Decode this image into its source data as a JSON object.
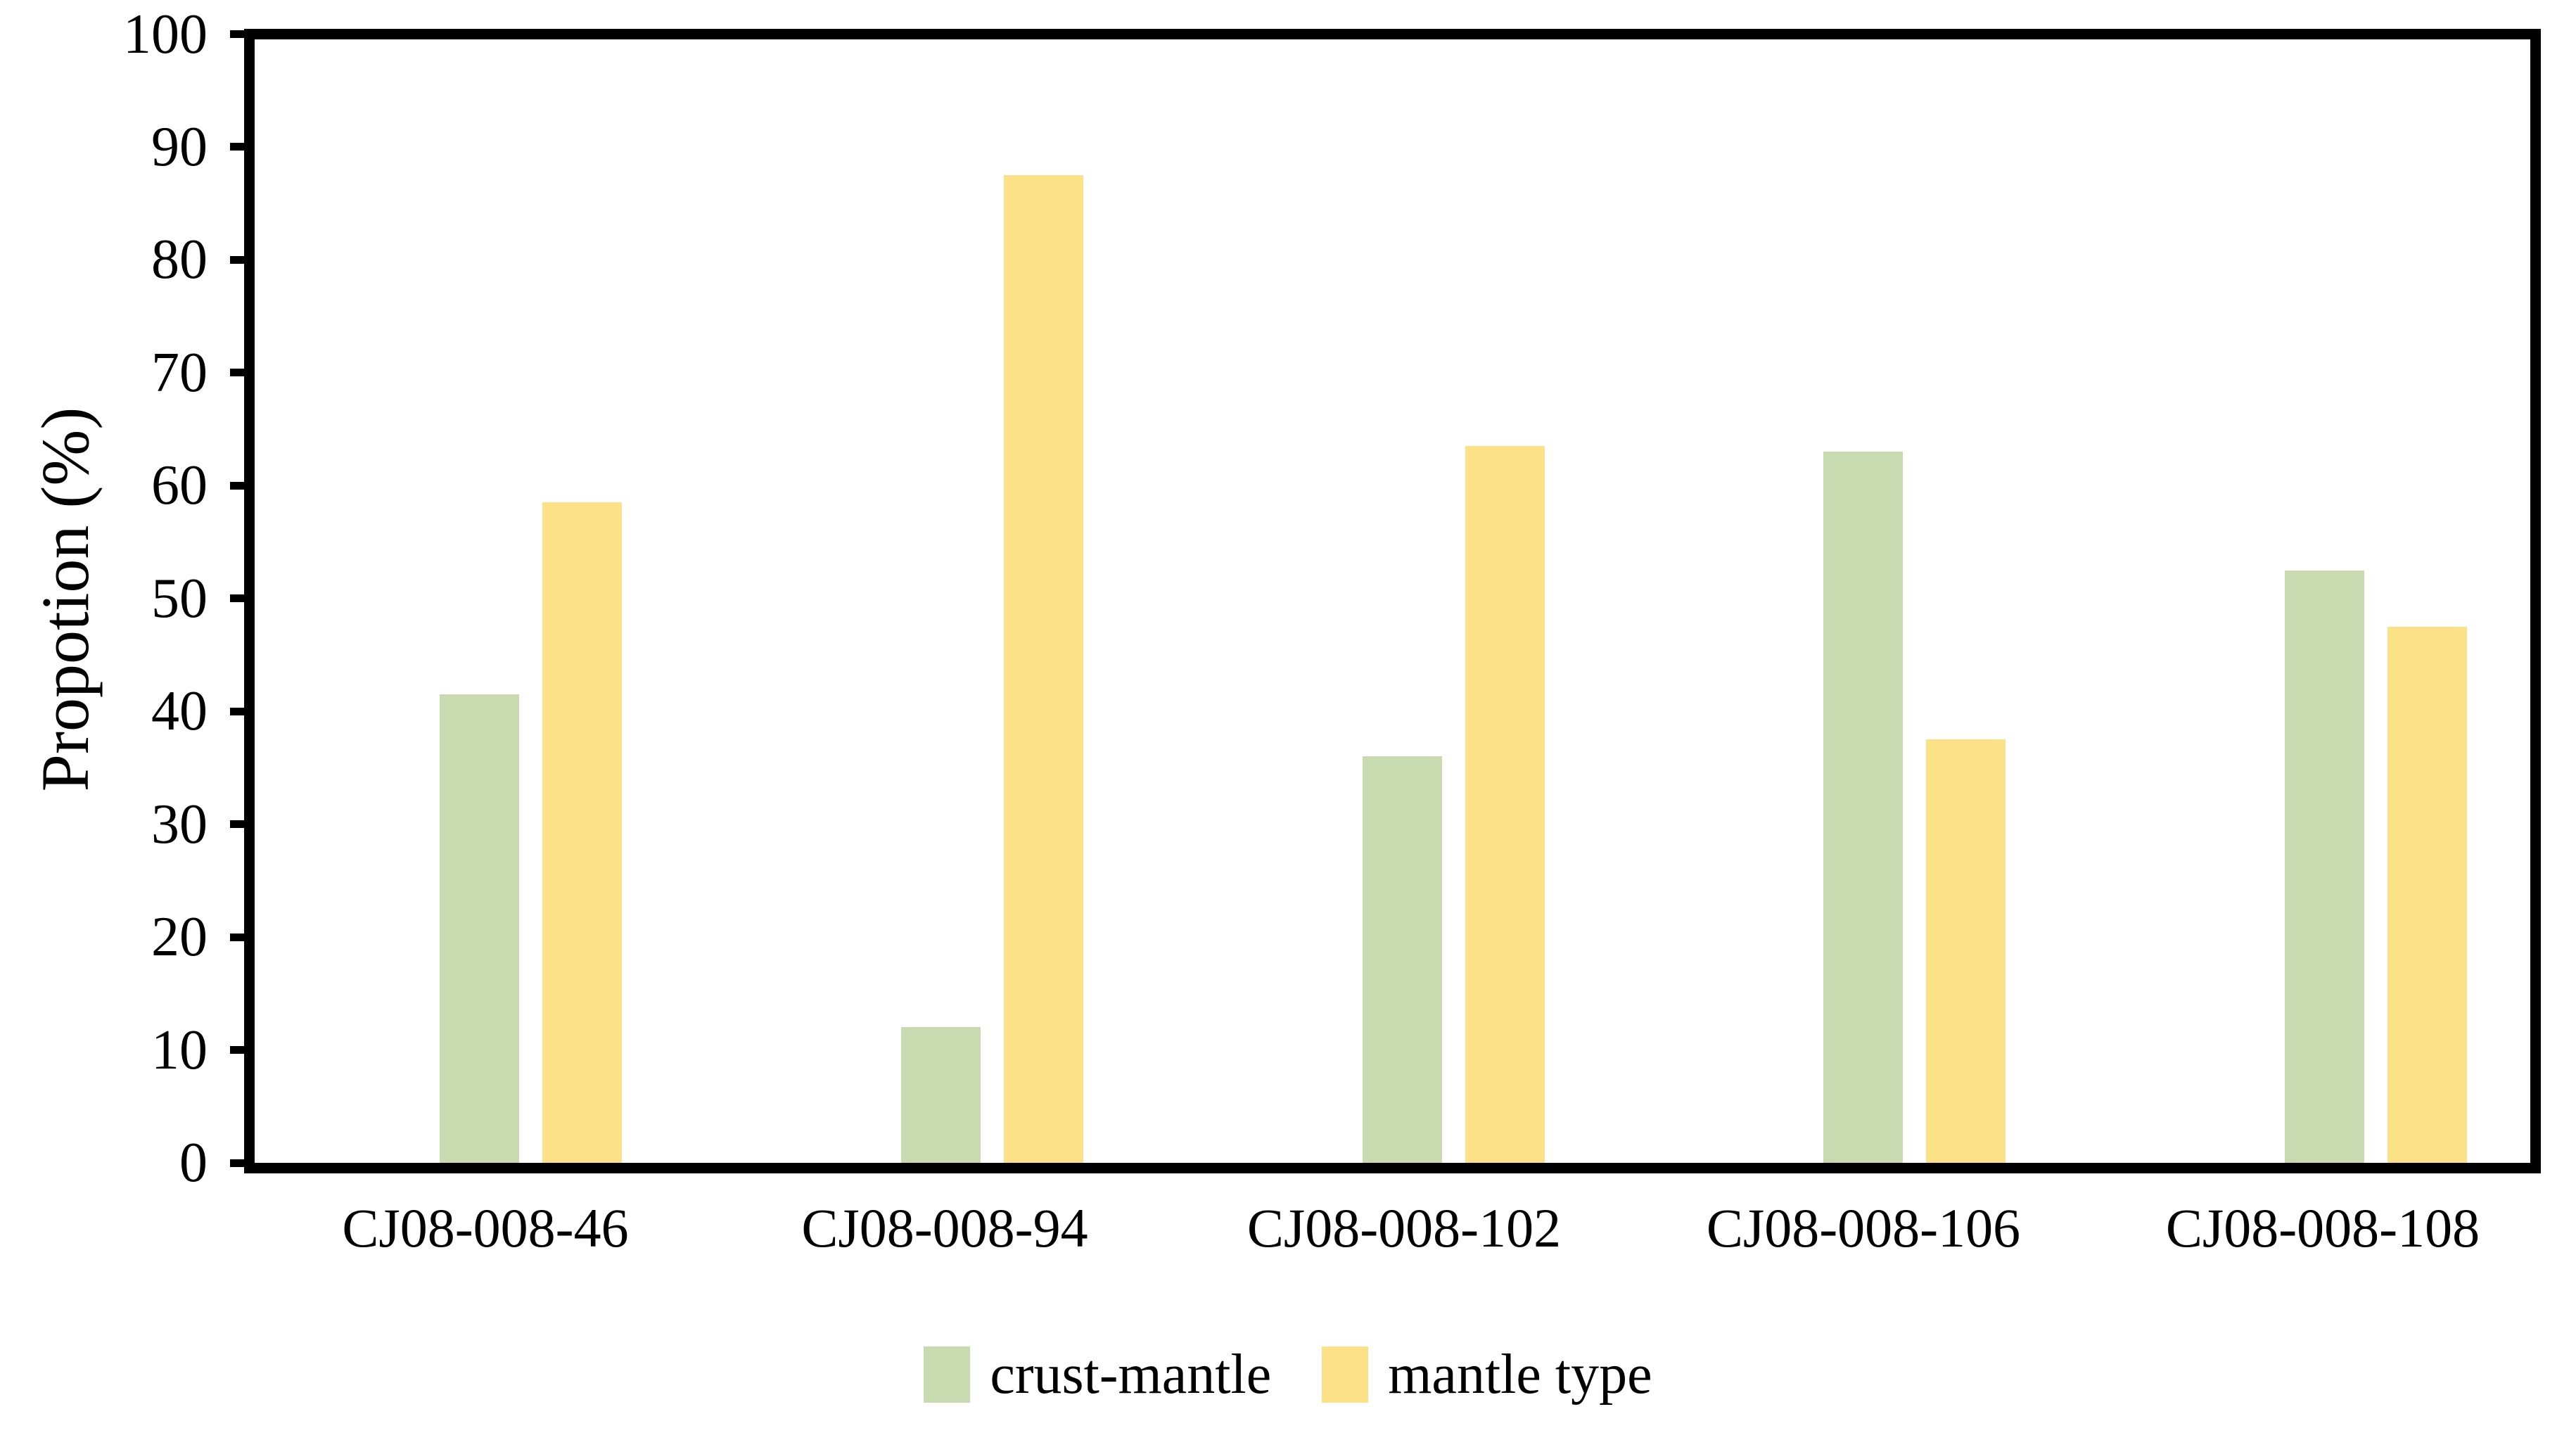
{
  "figure": {
    "background_color": "#ffffff",
    "axis_frame_color": "#000000",
    "text_color": "#000000"
  },
  "chart_data": {
    "type": "bar",
    "title": "",
    "xlabel": "",
    "ylabel": "Propotion (%)",
    "ylim": [
      0,
      100
    ],
    "ytick_step": 10,
    "yticks": [
      0,
      10,
      20,
      30,
      40,
      50,
      60,
      70,
      80,
      90,
      100
    ],
    "grid": false,
    "legend_position": "bottom",
    "categories": [
      "CJ08-008-46",
      "CJ08-008-94",
      "CJ08-008-102",
      "CJ08-008-106",
      "CJ08-008-108"
    ],
    "series": [
      {
        "name": "crust-mantle",
        "color": "#c8dbb0",
        "values": [
          41.5,
          12,
          36,
          63,
          52.5
        ]
      },
      {
        "name": "mantle type",
        "color": "#fde189",
        "values": [
          58.5,
          87.5,
          63.5,
          37.5,
          47.5
        ]
      }
    ]
  }
}
